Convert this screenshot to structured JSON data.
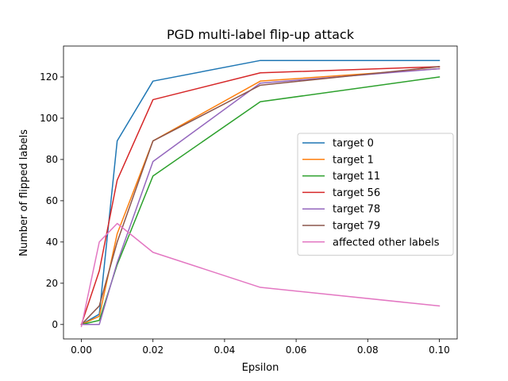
{
  "chart_data": {
    "type": "line",
    "title": "PGD multi-label flip-up attack",
    "xlabel": "Epsilon",
    "ylabel": "Number of flipped labels",
    "xlim": [
      -0.005,
      0.105
    ],
    "ylim": [
      -7,
      135
    ],
    "xticks": [
      0.0,
      0.02,
      0.04,
      0.06,
      0.08,
      0.1
    ],
    "xtick_labels": [
      "0.00",
      "0.02",
      "0.04",
      "0.06",
      "0.08",
      "0.10"
    ],
    "yticks": [
      0,
      20,
      40,
      60,
      80,
      100,
      120
    ],
    "ytick_labels": [
      "0",
      "20",
      "40",
      "60",
      "80",
      "100",
      "120"
    ],
    "grid": false,
    "legend_position": "center-right",
    "x": [
      0.0,
      0.005,
      0.01,
      0.02,
      0.05,
      0.1
    ],
    "series": [
      {
        "name": "target 0",
        "color": "#1f77b4",
        "values": [
          0,
          5,
          89,
          118,
          128,
          128
        ]
      },
      {
        "name": "target 1",
        "color": "#ff7f0e",
        "values": [
          0,
          4,
          44,
          89,
          118,
          124
        ]
      },
      {
        "name": "target 11",
        "color": "#2ca02c",
        "values": [
          0,
          2,
          29,
          72,
          108,
          120
        ]
      },
      {
        "name": "target 56",
        "color": "#d62728",
        "values": [
          0,
          26,
          70,
          109,
          122,
          125
        ]
      },
      {
        "name": "target 78",
        "color": "#9467bd",
        "values": [
          0,
          0,
          30,
          79,
          117,
          124
        ]
      },
      {
        "name": "target 79",
        "color": "#8c564b",
        "values": [
          0,
          9,
          40,
          89,
          116,
          125
        ]
      },
      {
        "name": "affected other labels",
        "color": "#e377c2",
        "values": [
          -1,
          40,
          49,
          35,
          18,
          9
        ]
      }
    ]
  }
}
